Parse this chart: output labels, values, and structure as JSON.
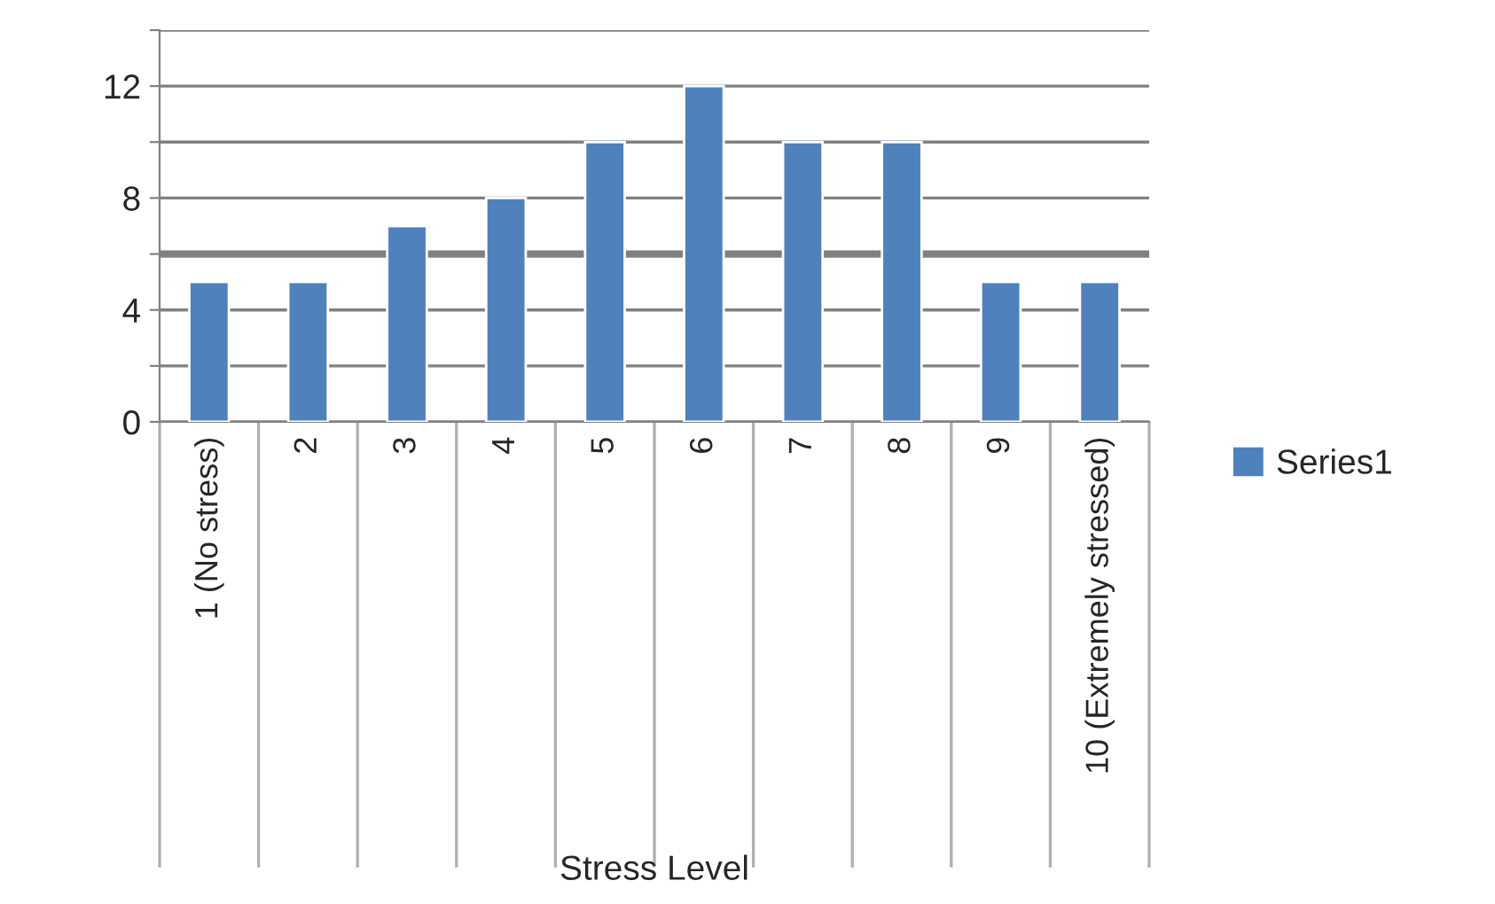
{
  "chart_data": {
    "type": "bar",
    "xlabel": "Stress Level",
    "categories": [
      "1 (No stress)",
      "2",
      "3",
      "4",
      "5",
      "6",
      "7",
      "8",
      "9",
      "10 (Extremely stressed)"
    ],
    "series": [
      {
        "name": "Series1",
        "color": "#4f81bd",
        "values": [
          5,
          5,
          7,
          8,
          10,
          12,
          10,
          10,
          5,
          5
        ]
      }
    ],
    "ylim": [
      0,
      14
    ],
    "yticks": [
      0,
      {
        "value": 2,
        "label": null
      },
      4,
      {
        "value": 6,
        "label": null
      },
      8,
      {
        "value": 10,
        "label": null
      },
      12,
      {
        "value": 14,
        "label": null
      }
    ],
    "ref_lines": [
      {
        "axis": "y",
        "value": 6,
        "color": "#808080"
      }
    ],
    "grid": "y",
    "legend": "right"
  }
}
